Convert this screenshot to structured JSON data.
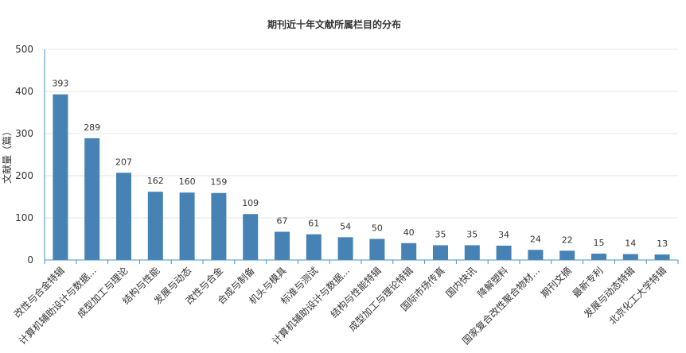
{
  "chart_data": {
    "type": "bar",
    "title": "期刊近十年文献所属栏目的分布",
    "ylabel": "文献量（篇）",
    "xlabel": "",
    "ylim": [
      0,
      500
    ],
    "yticks": [
      0,
      100,
      200,
      300,
      400,
      500
    ],
    "grid": true,
    "colors": {
      "bar": "#4682b4",
      "axis": "#4a90c2",
      "grid": "#e6e6e6"
    },
    "categories": [
      "改性与合金特辑",
      "计算机辅助设计与数据...",
      "成型加工与理论",
      "结构与性能",
      "发展与动态",
      "改性与合金",
      "合成与制备",
      "机头与模具",
      "标准与测试",
      "计算机辅助设计与数据...",
      "结构与性能特辑",
      "成型加工与理论特辑",
      "国际市场传真",
      "国内快讯",
      "降解塑料",
      "国家复合改性聚合物材...",
      "期刊文摘",
      "最新专利",
      "发展与动态特辑",
      "北京化工大学特辑"
    ],
    "values": [
      393,
      289,
      207,
      162,
      160,
      159,
      109,
      67,
      61,
      54,
      50,
      40,
      35,
      35,
      34,
      24,
      22,
      15,
      14,
      13
    ]
  }
}
